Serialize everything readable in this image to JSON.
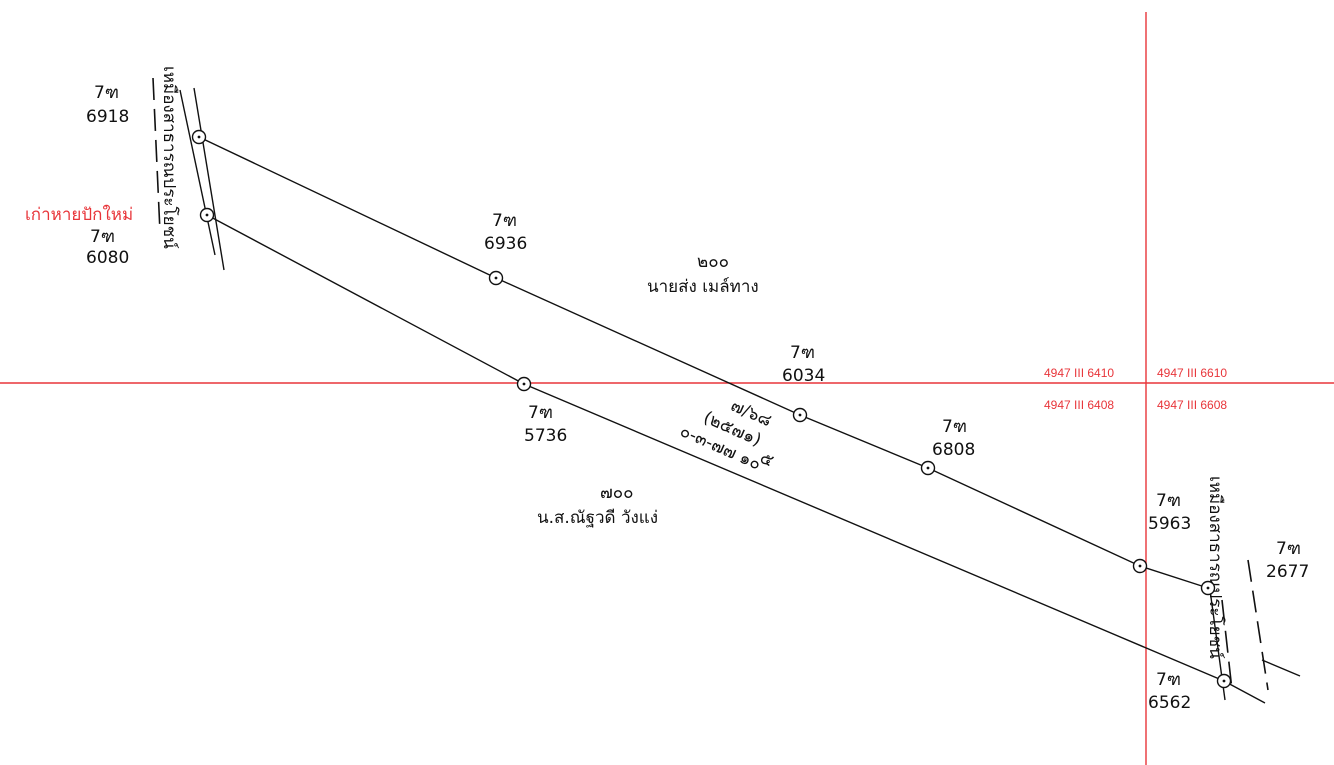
{
  "markers": [
    {
      "id": "p6918",
      "prefix": "7ฑ",
      "number": "6918"
    },
    {
      "id": "p6080",
      "prefix": "7ฑ",
      "number": "6080",
      "note": "เก่าหายปักใหม่"
    },
    {
      "id": "p6936",
      "prefix": "7ฑ",
      "number": "6936"
    },
    {
      "id": "p5736",
      "prefix": "7ฑ",
      "number": "5736"
    },
    {
      "id": "p6034",
      "prefix": "7ฑ",
      "number": "6034"
    },
    {
      "id": "p6808",
      "prefix": "7ฑ",
      "number": "6808"
    },
    {
      "id": "p5963",
      "prefix": "7ฑ",
      "number": "5963"
    },
    {
      "id": "p2677",
      "prefix": "7ฑ",
      "number": "2677"
    },
    {
      "id": "p6562",
      "prefix": "7ฑ",
      "number": "6562"
    }
  ],
  "parcels": [
    {
      "number": "๒๐๐",
      "owner": "นายส่ง เมล์ทาง"
    },
    {
      "number": "๗๐๐",
      "owner": "น.ส.ณัฐวดี วังแง่"
    }
  ],
  "survey_parcel": {
    "line1": "๗/๖๘",
    "line2": "(๒๕๗๑)",
    "line3": "๐-๓-๗๗ ๑๐",
    "line3_fraction_top": "๕",
    "line3_fraction_bottom": "๑๐"
  },
  "roads": {
    "left": "เหมืองสาธารณประโยชน์",
    "right": "เหมืองสาธารณประโยชน์"
  },
  "sheets": {
    "nw": "4947 III 6410",
    "ne": "4947 III 6610",
    "sw": "4947 III 6408",
    "se": "4947 III 6608"
  },
  "colors": {
    "grid": "#e8353a",
    "lines": "#111111",
    "note": "#e8353a"
  }
}
